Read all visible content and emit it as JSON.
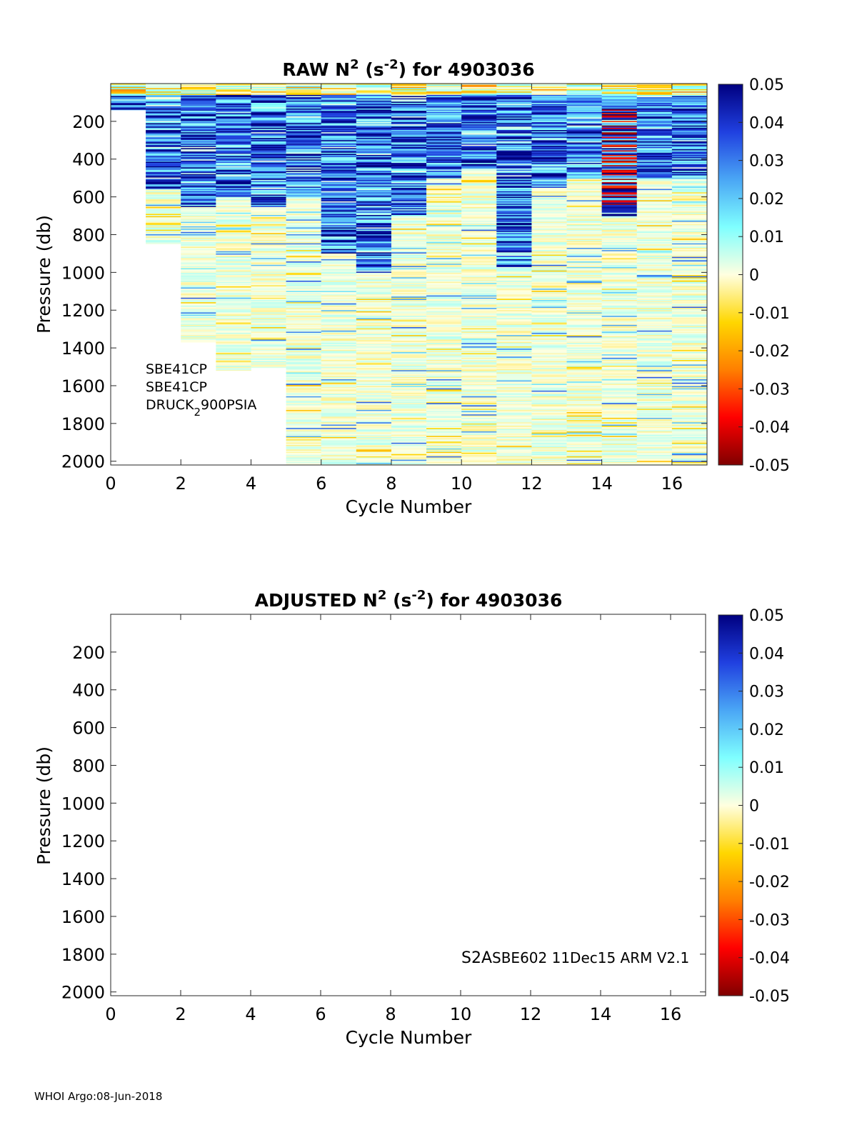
{
  "footer": "WHOI Argo:08-Jun-2018",
  "chart_data": [
    {
      "type": "heatmap",
      "title_parts": [
        "RAW N",
        "2",
        " (s",
        "-2",
        ") for 4903036"
      ],
      "xlabel": "Cycle Number",
      "ylabel": "Pressure (db)",
      "xlim": [
        0,
        17
      ],
      "ylim": [
        0,
        2020
      ],
      "y_reversed": true,
      "xticks": [
        "0",
        "2",
        "4",
        "6",
        "8",
        "10",
        "12",
        "14",
        "16"
      ],
      "yticks": [
        "200",
        "400",
        "600",
        "800",
        "1000",
        "1200",
        "1400",
        "1600",
        "1800",
        "2000"
      ],
      "colorbar": {
        "clim": [
          -0.05,
          0.05
        ],
        "ticks": [
          "0.05",
          "0.04",
          "0.03",
          "0.02",
          "0.01",
          "0",
          "-0.01",
          "-0.02",
          "-0.03",
          "-0.04",
          "-0.05"
        ]
      },
      "profile_max_pressure": [
        140,
        850,
        1370,
        1520,
        1505,
        2020,
        2020,
        2020,
        2020,
        2020,
        2020,
        2020,
        2020,
        2020,
        2020,
        2020,
        2020
      ],
      "annotations": [
        {
          "parts": [
            "SBE41CP"
          ]
        },
        {
          "parts": [
            "SBE41CP"
          ]
        },
        {
          "parts": [
            "DRUCK",
            "2",
            "900PSIA"
          ]
        }
      ]
    },
    {
      "type": "heatmap",
      "title_parts": [
        "ADJUSTED N",
        "2",
        " (s",
        "-2",
        ") for 4903036"
      ],
      "xlabel": "Cycle Number",
      "ylabel": "Pressure (db)",
      "xlim": [
        0,
        17
      ],
      "ylim": [
        0,
        2020
      ],
      "y_reversed": true,
      "xticks": [
        "0",
        "2",
        "4",
        "6",
        "8",
        "10",
        "12",
        "14",
        "16"
      ],
      "yticks": [
        "200",
        "400",
        "600",
        "800",
        "1000",
        "1200",
        "1400",
        "1600",
        "1800",
        "2000"
      ],
      "colorbar": {
        "clim": [
          -0.05,
          0.05
        ],
        "ticks": [
          "0.05",
          "0.04",
          "0.03",
          "0.02",
          "0.01",
          "0",
          "-0.01",
          "-0.02",
          "-0.03",
          "-0.04",
          "-0.05"
        ]
      },
      "values": [],
      "annotations": [
        {
          "parts": [
            "S2A",
            "SBE602 11Dec15 ARM V2.1"
          ]
        }
      ]
    }
  ]
}
